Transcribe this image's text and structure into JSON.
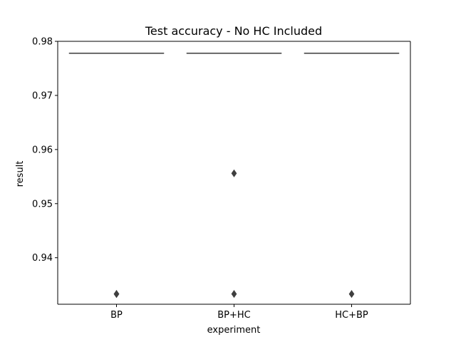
{
  "chart_data": {
    "type": "box",
    "title": "Test accuracy - No HC Included",
    "xlabel": "experiment",
    "ylabel": "result",
    "categories": [
      "BP",
      "BP+HC",
      "HC+BP"
    ],
    "ylim": [
      0.9314,
      0.98
    ],
    "yticks": [
      0.94,
      0.95,
      0.96,
      0.97,
      0.98
    ],
    "ytick_labels": [
      "0.94",
      "0.95",
      "0.96",
      "0.97",
      "0.98"
    ],
    "boxes": [
      {
        "category": "BP",
        "q1": 0.9778,
        "median": 0.9778,
        "q3": 0.9778,
        "whisker_low": 0.9778,
        "whisker_high": 0.9778,
        "outliers": [
          0.9333,
          0.9333
        ]
      },
      {
        "category": "BP+HC",
        "q1": 0.9778,
        "median": 0.9778,
        "q3": 0.9778,
        "whisker_low": 0.9778,
        "whisker_high": 0.9778,
        "outliers": [
          0.9556,
          0.9333
        ]
      },
      {
        "category": "HC+BP",
        "q1": 0.9778,
        "median": 0.9778,
        "q3": 0.9778,
        "whisker_low": 0.9778,
        "whisker_high": 0.9778,
        "outliers": [
          0.9333
        ]
      }
    ],
    "grid": false,
    "legend": "none",
    "colors": {
      "box_edge": "#3f3f3f",
      "outlier": "#3f3f3f",
      "axes": "#000000"
    }
  }
}
